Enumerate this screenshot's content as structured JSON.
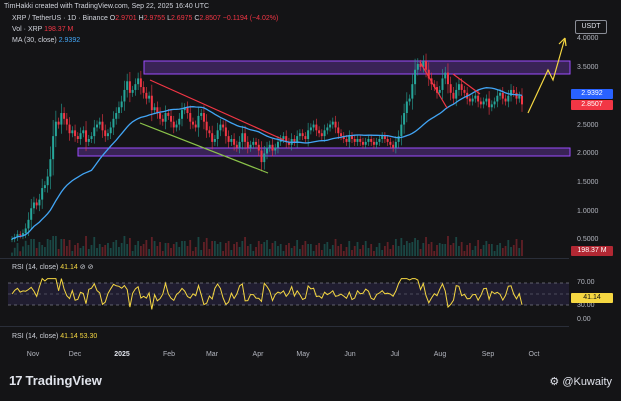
{
  "header": {
    "credit": "TimHakki created with TradingView.com, Sep 22, 2025 16:40 UTC"
  },
  "legend": {
    "symbol": "XRP / TetherUS · 1D · Binance",
    "ohlc": {
      "o_label": "O",
      "o": "2.9701",
      "h_label": "H",
      "h": "2.9755",
      "l_label": "L",
      "l": "2.6975",
      "c_label": "C",
      "c": "2.8507",
      "change": "−0.1194 (−4.02%)"
    },
    "vol_label": "Vol · XRP",
    "vol_value": "198.37 M",
    "ma_label": "MA (30, close)",
    "ma_value": "2.9392"
  },
  "currency_button": "USDT",
  "price_axis": [
    "4.0000",
    "3.5000",
    "3.0000",
    "2.5000",
    "2.0000",
    "1.5000",
    "1.0000",
    "0.5000"
  ],
  "price_tags": {
    "ma": "2.9392",
    "close": "2.8507",
    "volume": "198.37 M"
  },
  "rsi_pane": {
    "label": "RSI (14, close)",
    "value": "41.14",
    "tag": "41.14",
    "axis": [
      "70.00",
      "50.00",
      "30.00"
    ]
  },
  "rsi_pane2": {
    "label": "RSI (14, close)",
    "value1": "41.14",
    "value2": "53.30",
    "axis": [
      "0.00"
    ]
  },
  "time_axis": [
    {
      "label": "Nov",
      "bold": false
    },
    {
      "label": "Dec",
      "bold": false
    },
    {
      "label": "2025",
      "bold": true
    },
    {
      "label": "Feb",
      "bold": false
    },
    {
      "label": "Mar",
      "bold": false
    },
    {
      "label": "Apr",
      "bold": false
    },
    {
      "label": "May",
      "bold": false
    },
    {
      "label": "Jun",
      "bold": false
    },
    {
      "label": "Jul",
      "bold": false
    },
    {
      "label": "Aug",
      "bold": false
    },
    {
      "label": "Sep",
      "bold": false
    },
    {
      "label": "Oct",
      "bold": false
    }
  ],
  "brand": "TradingView",
  "author_handle": "@Kuwaity",
  "colors": {
    "up": "#26a69a",
    "down": "#f23645",
    "ma": "#42a5f5",
    "zone": "#9c4dff",
    "rsi": "#f5d742",
    "arrow": "#f5d742"
  },
  "chart_data": {
    "type": "candlestick",
    "symbol": "XRP/USDT",
    "interval": "1D",
    "ylim": [
      0.3,
      4.1
    ],
    "x_range": [
      "Nov",
      "Oct"
    ],
    "closes": [
      0.52,
      0.55,
      0.6,
      0.58,
      0.62,
      0.7,
      0.85,
      1.05,
      1.15,
      1.1,
      1.2,
      1.4,
      1.45,
      1.6,
      1.9,
      2.3,
      2.55,
      2.5,
      2.7,
      2.6,
      2.5,
      2.35,
      2.4,
      2.3,
      2.25,
      2.35,
      2.4,
      2.2,
      2.25,
      2.3,
      2.45,
      2.5,
      2.55,
      2.4,
      2.3,
      2.35,
      2.45,
      2.6,
      2.7,
      2.8,
      2.9,
      3.1,
      3.25,
      3.05,
      3.1,
      3.2,
      3.3,
      3.15,
      3.05,
      2.95,
      3.0,
      2.75,
      2.8,
      2.7,
      2.6,
      2.55,
      2.7,
      2.65,
      2.55,
      2.45,
      2.5,
      2.6,
      2.75,
      2.8,
      2.7,
      2.55,
      2.5,
      2.45,
      2.65,
      2.7,
      2.55,
      2.4,
      2.35,
      2.2,
      2.25,
      2.4,
      2.5,
      2.45,
      2.3,
      2.2,
      2.25,
      2.15,
      2.1,
      2.2,
      2.35,
      2.2,
      2.1,
      2.15,
      2.2,
      2.15,
      2.05,
      1.85,
      2.0,
      2.1,
      2.15,
      2.05,
      2.1,
      2.2,
      2.25,
      2.3,
      2.2,
      2.15,
      2.25,
      2.2,
      2.3,
      2.35,
      2.3,
      2.25,
      2.4,
      2.45,
      2.5,
      2.4,
      2.35,
      2.3,
      2.4,
      2.45,
      2.5,
      2.55,
      2.45,
      2.35,
      2.3,
      2.25,
      2.2,
      2.3,
      2.25,
      2.2,
      2.25,
      2.2,
      2.15,
      2.2,
      2.25,
      2.2,
      2.15,
      2.2,
      2.25,
      2.3,
      2.25,
      2.2,
      2.15,
      2.1,
      2.2,
      2.3,
      2.5,
      2.7,
      2.9,
      2.95,
      3.2,
      3.45,
      3.55,
      3.5,
      3.6,
      3.45,
      3.3,
      3.2,
      3.15,
      3.05,
      3.1,
      3.3,
      3.4,
      3.2,
      3.05,
      2.95,
      3.1,
      3.2,
      3.1,
      3.05,
      2.95,
      2.9,
      2.95,
      3.0,
      2.9,
      2.85,
      2.9,
      2.95,
      2.8,
      2.85,
      2.9,
      3.0,
      3.05,
      2.95,
      2.9,
      3.0,
      3.1,
      3.05,
      2.95,
      3.0,
      2.85
    ],
    "ma30_last": 2.9392,
    "last_close": 2.8507,
    "zones": [
      {
        "name": "resistance",
        "from": 3.42,
        "to": 3.6
      },
      {
        "name": "support",
        "from": 1.96,
        "to": 2.1
      }
    ],
    "volume_last": "198.37 M",
    "rsi_last": 41.14,
    "rsi_band": [
      30,
      70
    ]
  }
}
